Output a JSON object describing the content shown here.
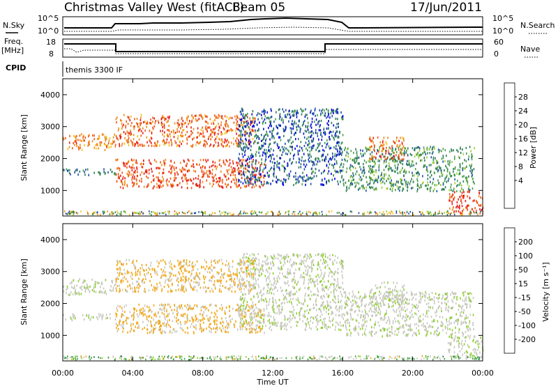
{
  "header": {
    "station": "Christmas Valley West (fitACF)",
    "beam": "Beam 05",
    "date": "17/Jun/2011"
  },
  "top_panel": {
    "left_label": "N.Sky",
    "left_ticks": [
      "10^5",
      "10^0"
    ],
    "right_label": "N.Search",
    "right_ticks": [
      "10^5",
      "10^0"
    ]
  },
  "freq_panel": {
    "left_label_1": "Freq.",
    "left_label_2": "[MHz]",
    "left_ticks": [
      "18",
      "8"
    ],
    "right_label": "Nave",
    "right_ticks": [
      "60",
      "0"
    ]
  },
  "cpid": {
    "label": "CPID",
    "program": "themis 3300 IF"
  },
  "chart_data": [
    {
      "type": "heatmap",
      "panel": "power",
      "xlabel": "Time UT",
      "ylabel": "Slant Range [km]",
      "x_ticks": [
        "00:00",
        "04:00",
        "08:00",
        "12:00",
        "16:00",
        "20:00",
        "00:00"
      ],
      "y_ticks": [
        1000,
        2000,
        3000,
        4000
      ],
      "ylim": [
        200,
        4500
      ],
      "xlim_hours": [
        0,
        24
      ],
      "colorbar": {
        "label": "Power [dB]",
        "ticks": [
          4,
          8,
          12,
          16,
          20,
          24,
          28
        ],
        "range": [
          0,
          30
        ],
        "colors": [
          "#0000dd",
          "#1f4fa8",
          "#2e7d5a",
          "#4aa04a",
          "#9ccc33",
          "#f2c21a",
          "#f08c1c",
          "#ee5a1a",
          "#e81a14"
        ]
      },
      "echo_bands": [
        {
          "t0": 0.0,
          "t1": 3.0,
          "r0": 2300,
          "r1": 2800,
          "power": 22
        },
        {
          "t0": 0.0,
          "t1": 3.0,
          "r0": 1500,
          "r1": 1700,
          "power": 8
        },
        {
          "t0": 3.0,
          "t1": 11.5,
          "r0": 1100,
          "r1": 2000,
          "power": 26
        },
        {
          "t0": 3.0,
          "t1": 11.0,
          "r0": 2400,
          "r1": 3400,
          "power": 24
        },
        {
          "t0": 10.0,
          "t1": 16.0,
          "r0": 1200,
          "r1": 3600,
          "power": 6
        },
        {
          "t0": 16.0,
          "t1": 23.5,
          "r0": 1000,
          "r1": 2400,
          "power": 10
        },
        {
          "t0": 17.5,
          "t1": 19.5,
          "r0": 2000,
          "r1": 2700,
          "power": 24
        },
        {
          "t0": 22.0,
          "t1": 24.0,
          "r0": 300,
          "r1": 1000,
          "power": 28
        }
      ]
    },
    {
      "type": "heatmap",
      "panel": "velocity",
      "xlabel": "Time UT",
      "ylabel": "Slant Range [km]",
      "x_ticks": [
        "00:00",
        "04:00",
        "08:00",
        "12:00",
        "16:00",
        "20:00",
        "00:00"
      ],
      "y_ticks": [
        1000,
        2000,
        3000,
        4000
      ],
      "ylim": [
        200,
        4500
      ],
      "xlim_hours": [
        0,
        24
      ],
      "colorbar": {
        "label": "Velocity [m s⁻¹]",
        "ticks": [
          200,
          100,
          50,
          15,
          -15,
          -50,
          -100,
          -200
        ],
        "colors": [
          "#1a2f9a",
          "#2c7a4a",
          "#3aa83a",
          "#8ccf2a",
          "#c8c8c0",
          "#f2a81a",
          "#f07a1a",
          "#ee4a1a",
          "#e8141a"
        ]
      },
      "echo_bands": [
        {
          "t0": 0.0,
          "t1": 3.0,
          "r0": 2300,
          "r1": 2800,
          "velocity": 0
        },
        {
          "t0": 0.0,
          "t1": 3.0,
          "r0": 1500,
          "r1": 1700,
          "velocity": 0
        },
        {
          "t0": 3.0,
          "t1": 11.5,
          "r0": 1100,
          "r1": 2000,
          "velocity": -40
        },
        {
          "t0": 3.0,
          "t1": 11.0,
          "r0": 2400,
          "r1": 3400,
          "velocity": -40
        },
        {
          "t0": 10.0,
          "t1": 16.0,
          "r0": 1200,
          "r1": 3600,
          "velocity": 0
        },
        {
          "t0": 16.0,
          "t1": 23.5,
          "r0": 1000,
          "r1": 2400,
          "velocity": 0
        },
        {
          "t0": 17.5,
          "t1": 19.5,
          "r0": 2000,
          "r1": 2700,
          "velocity": 0
        },
        {
          "t0": 22.0,
          "t1": 24.0,
          "r0": 300,
          "r1": 1000,
          "velocity": 0
        }
      ]
    }
  ]
}
